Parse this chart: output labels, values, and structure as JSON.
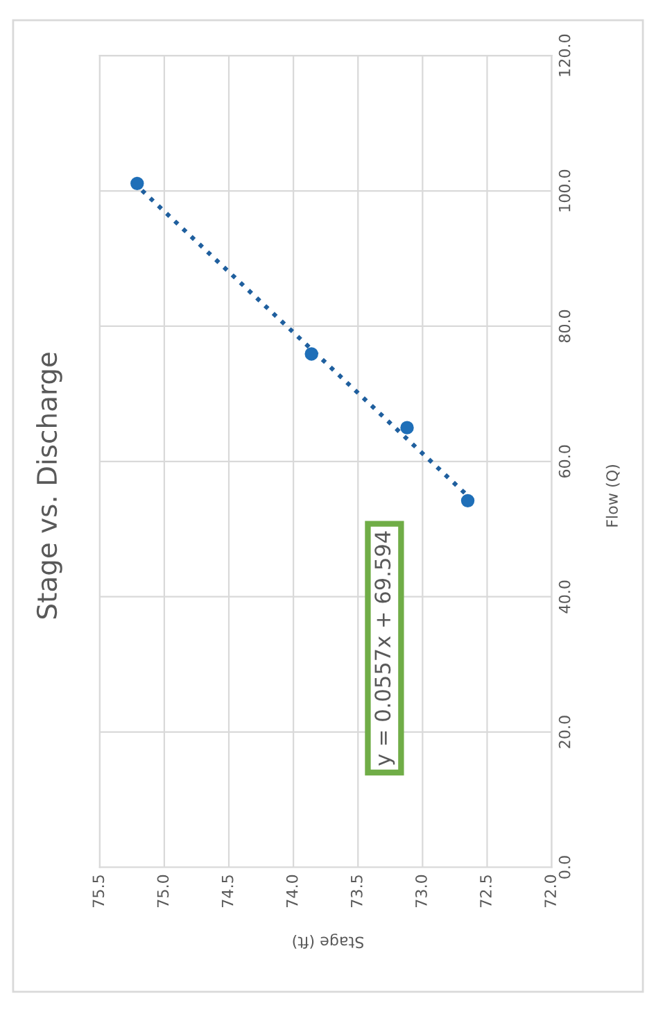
{
  "chart_data": {
    "type": "scatter",
    "title": "Stage vs. Discharge",
    "xlabel": "Stage (ft)",
    "ylabel": "Flow (Q)",
    "series": [
      {
        "color": "#1f6fb8",
        "marker": "circle",
        "x": [
          75.21,
          73.86,
          73.12,
          72.65
        ],
        "values": [
          101.1,
          75.9,
          65.0,
          54.2
        ]
      },
      {
        "type": "line",
        "color": "#1f5f9e",
        "line_style": "dotted",
        "marker": "none",
        "x": [
          72.61,
          75.23
        ],
        "values": [
          54.2,
          101.1
        ]
      }
    ],
    "annotations": [
      "y = 0.0557x + 69.594"
    ],
    "ylim": [
      0,
      120
    ],
    "yticks": [
      {
        "value": 0,
        "label": "0.0"
      },
      {
        "value": 20,
        "label": "20.0"
      },
      {
        "value": 40,
        "label": "40.0"
      },
      {
        "value": 60,
        "label": "60.0"
      },
      {
        "value": 80,
        "label": "80.0"
      },
      {
        "value": 100,
        "label": "100.0"
      },
      {
        "value": 120,
        "label": "120.0"
      }
    ],
    "xlim": [
      75.5,
      72.0
    ],
    "xticks": [
      {
        "value": 75.5,
        "label": "75.5"
      },
      {
        "value": 75.0,
        "label": "75.0"
      },
      {
        "value": 74.5,
        "label": "74.5"
      },
      {
        "value": 74.0,
        "label": "74.0"
      },
      {
        "value": 73.5,
        "label": "73.5"
      },
      {
        "value": 73.0,
        "label": "73.0"
      },
      {
        "value": 72.5,
        "label": "72.5"
      },
      {
        "value": 72.0,
        "label": "72.0"
      }
    ],
    "grid": true
  }
}
